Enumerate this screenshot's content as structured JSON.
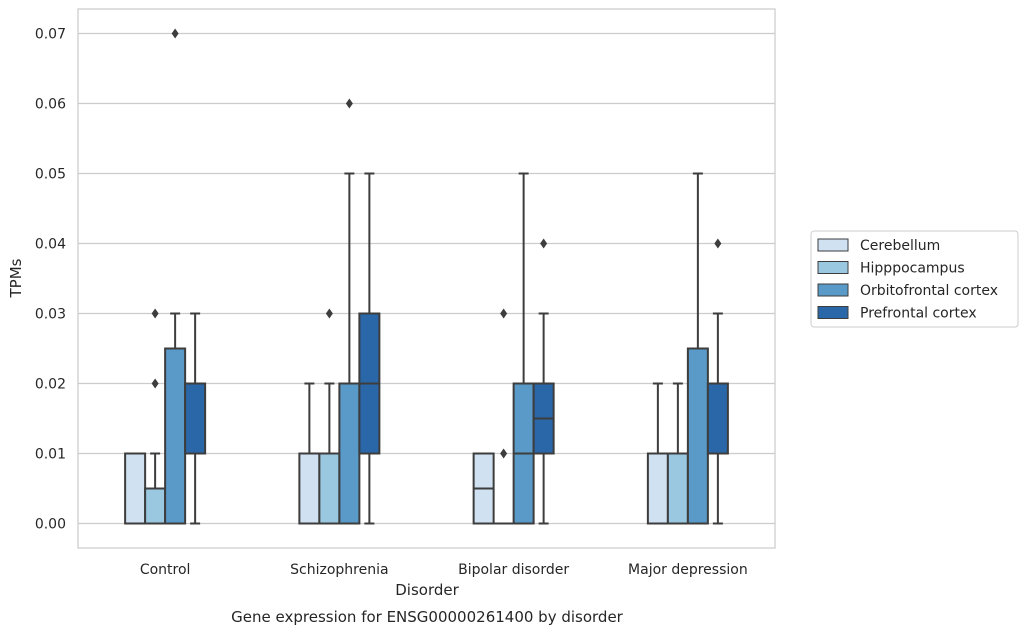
{
  "chart_data": {
    "type": "boxplot",
    "caption": "Gene expression for ENSG00000261400 by disorder",
    "xlabel": "Disorder",
    "ylabel": "TPMs",
    "ylim": [
      -0.0035,
      0.0735
    ],
    "yticks": [
      "0.00",
      "0.01",
      "0.02",
      "0.03",
      "0.04",
      "0.05",
      "0.06",
      "0.07"
    ],
    "grid": "horizontal",
    "legend_position": "right",
    "categories": [
      "Control",
      "Schizophrenia",
      "Bipolar disorder",
      "Major depression"
    ],
    "series": [
      {
        "name": "Cerebellum",
        "color": "#d0e1f2",
        "boxes": [
          {
            "whislo": 0.0,
            "q1": 0.0,
            "med": 0.0,
            "q3": 0.01,
            "whishi": 0.01,
            "fliers": []
          },
          {
            "whislo": 0.0,
            "q1": 0.0,
            "med": 0.0,
            "q3": 0.01,
            "whishi": 0.02,
            "fliers": []
          },
          {
            "whislo": 0.0,
            "q1": 0.0,
            "med": 0.005,
            "q3": 0.01,
            "whishi": 0.01,
            "fliers": []
          },
          {
            "whislo": 0.0,
            "q1": 0.0,
            "med": 0.0,
            "q3": 0.01,
            "whishi": 0.02,
            "fliers": []
          }
        ]
      },
      {
        "name": "Hipppocampus",
        "color": "#9ac8e0",
        "boxes": [
          {
            "whislo": 0.0,
            "q1": 0.0,
            "med": 0.0,
            "q3": 0.005,
            "whishi": 0.01,
            "fliers": [
              0.02,
              0.03
            ]
          },
          {
            "whislo": 0.0,
            "q1": 0.0,
            "med": 0.0,
            "q3": 0.01,
            "whishi": 0.02,
            "fliers": [
              0.03
            ]
          },
          {
            "whislo": 0.0,
            "q1": 0.0,
            "med": 0.0,
            "q3": 0.0,
            "whishi": 0.0,
            "fliers": [
              0.01,
              0.03
            ]
          },
          {
            "whislo": 0.0,
            "q1": 0.0,
            "med": 0.0,
            "q3": 0.01,
            "whishi": 0.02,
            "fliers": []
          }
        ]
      },
      {
        "name": "Orbitofrontal cortex",
        "color": "#5a9ac8",
        "boxes": [
          {
            "whislo": 0.0,
            "q1": 0.0,
            "med": 0.0,
            "q3": 0.025,
            "whishi": 0.03,
            "fliers": [
              0.07
            ]
          },
          {
            "whislo": 0.0,
            "q1": 0.0,
            "med": 0.0,
            "q3": 0.02,
            "whishi": 0.05,
            "fliers": [
              0.06
            ]
          },
          {
            "whislo": 0.0,
            "q1": 0.0,
            "med": 0.01,
            "q3": 0.02,
            "whishi": 0.05,
            "fliers": []
          },
          {
            "whislo": 0.0,
            "q1": 0.0,
            "med": 0.0,
            "q3": 0.025,
            "whishi": 0.05,
            "fliers": []
          }
        ]
      },
      {
        "name": "Prefrontal cortex",
        "color": "#2a67a8",
        "boxes": [
          {
            "whislo": 0.0,
            "q1": 0.01,
            "med": 0.01,
            "q3": 0.02,
            "whishi": 0.03,
            "fliers": []
          },
          {
            "whislo": 0.0,
            "q1": 0.01,
            "med": 0.02,
            "q3": 0.03,
            "whishi": 0.05,
            "fliers": []
          },
          {
            "whislo": 0.0,
            "q1": 0.01,
            "med": 0.015,
            "q3": 0.02,
            "whishi": 0.03,
            "fliers": [
              0.04
            ]
          },
          {
            "whislo": 0.0,
            "q1": 0.01,
            "med": 0.01,
            "q3": 0.02,
            "whishi": 0.03,
            "fliers": [
              0.04
            ]
          }
        ]
      }
    ]
  }
}
